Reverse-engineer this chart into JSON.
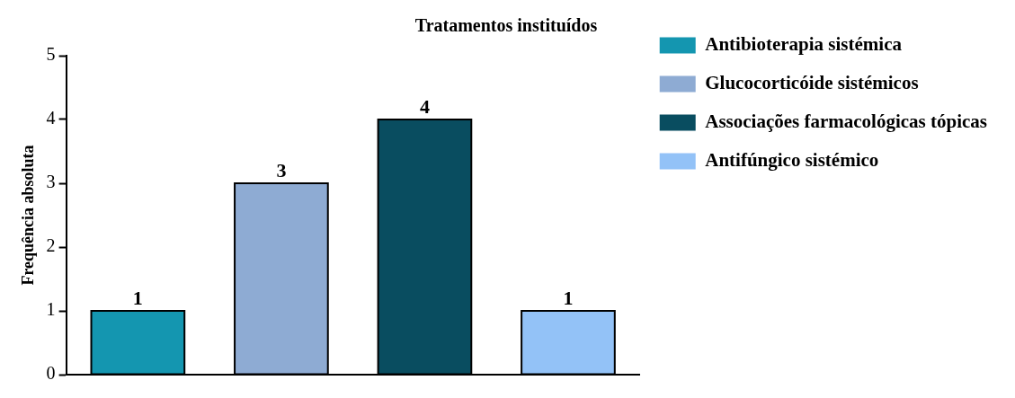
{
  "chart_data": {
    "type": "bar",
    "title": "Tratamentos instituídos",
    "ylabel": "Frequência absoluta",
    "categories": [
      null,
      null,
      null,
      null
    ],
    "series": [
      {
        "name": "Antibioterapia sistémica",
        "color": "#1496b0",
        "values": [
          1,
          null,
          null,
          null
        ]
      },
      {
        "name": "Glucocorticóide sistémicos",
        "color": "#8eabd3",
        "values": [
          null,
          3,
          null,
          null
        ]
      },
      {
        "name": "Associações farmacológicas tópicas",
        "color": "#094d60",
        "values": [
          null,
          null,
          4,
          null
        ]
      },
      {
        "name": "Antifúngico sistémico",
        "color": "#93c2f7",
        "values": [
          null,
          null,
          null,
          1
        ]
      }
    ],
    "ylim": [
      0,
      5
    ],
    "yticks": [
      0,
      1,
      2,
      3,
      4,
      5
    ],
    "grid": false,
    "legend": "right",
    "tick_labels": "y",
    "data_labels": true
  }
}
